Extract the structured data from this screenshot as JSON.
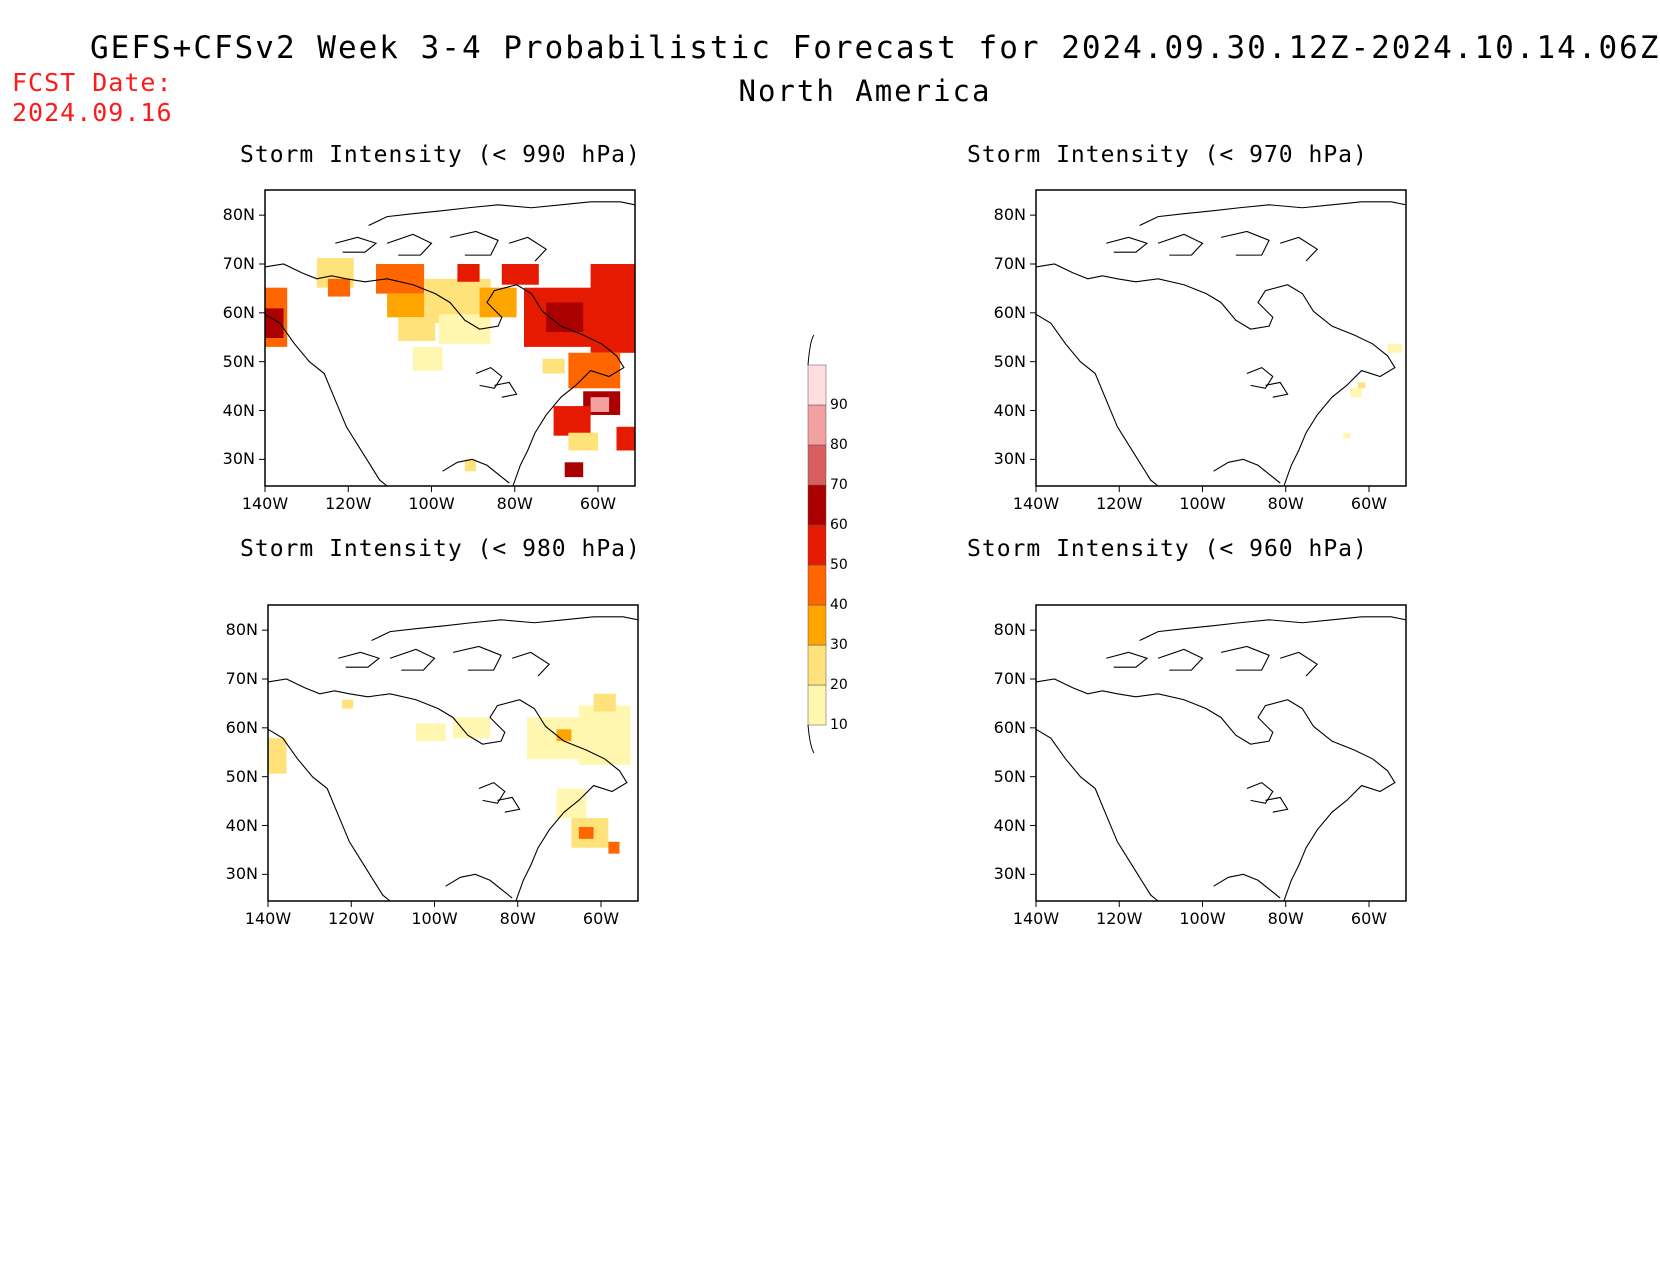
{
  "header": {
    "title_line1": "GEFS+CFSv2 Week 3-4 Probabilistic Forecast for 2024.09.30.12Z-2024.10.14.06Z",
    "title_line2": "North America",
    "fcst_label": "FCST Date:",
    "fcst_date": "2024.09.16"
  },
  "axes": {
    "lat_ticks": [
      "80N",
      "70N",
      "60N",
      "50N",
      "40N",
      "30N"
    ],
    "lon_ticks": [
      "140W",
      "120W",
      "100W",
      "80W",
      "60W"
    ]
  },
  "panels": [
    {
      "id": "p990",
      "title": "Storm Intensity (< 990 hPa)",
      "coverage": "high"
    },
    {
      "id": "p970",
      "title": "Storm Intensity (< 970 hPa)",
      "coverage": "trace"
    },
    {
      "id": "p980",
      "title": "Storm Intensity (< 980 hPa)",
      "coverage": "moderate"
    },
    {
      "id": "p960",
      "title": "Storm Intensity (< 960 hPa)",
      "coverage": "none"
    }
  ],
  "colorbar": {
    "levels": [
      "10",
      "20",
      "30",
      "40",
      "50",
      "60",
      "70",
      "80",
      "90"
    ],
    "colors": [
      "#fff7b0",
      "#ffe27a",
      "#ffa500",
      "#ff6600",
      "#e61a00",
      "#aa0000",
      "#d95f5f",
      "#f2a0a0",
      "#ffdde0"
    ]
  }
}
